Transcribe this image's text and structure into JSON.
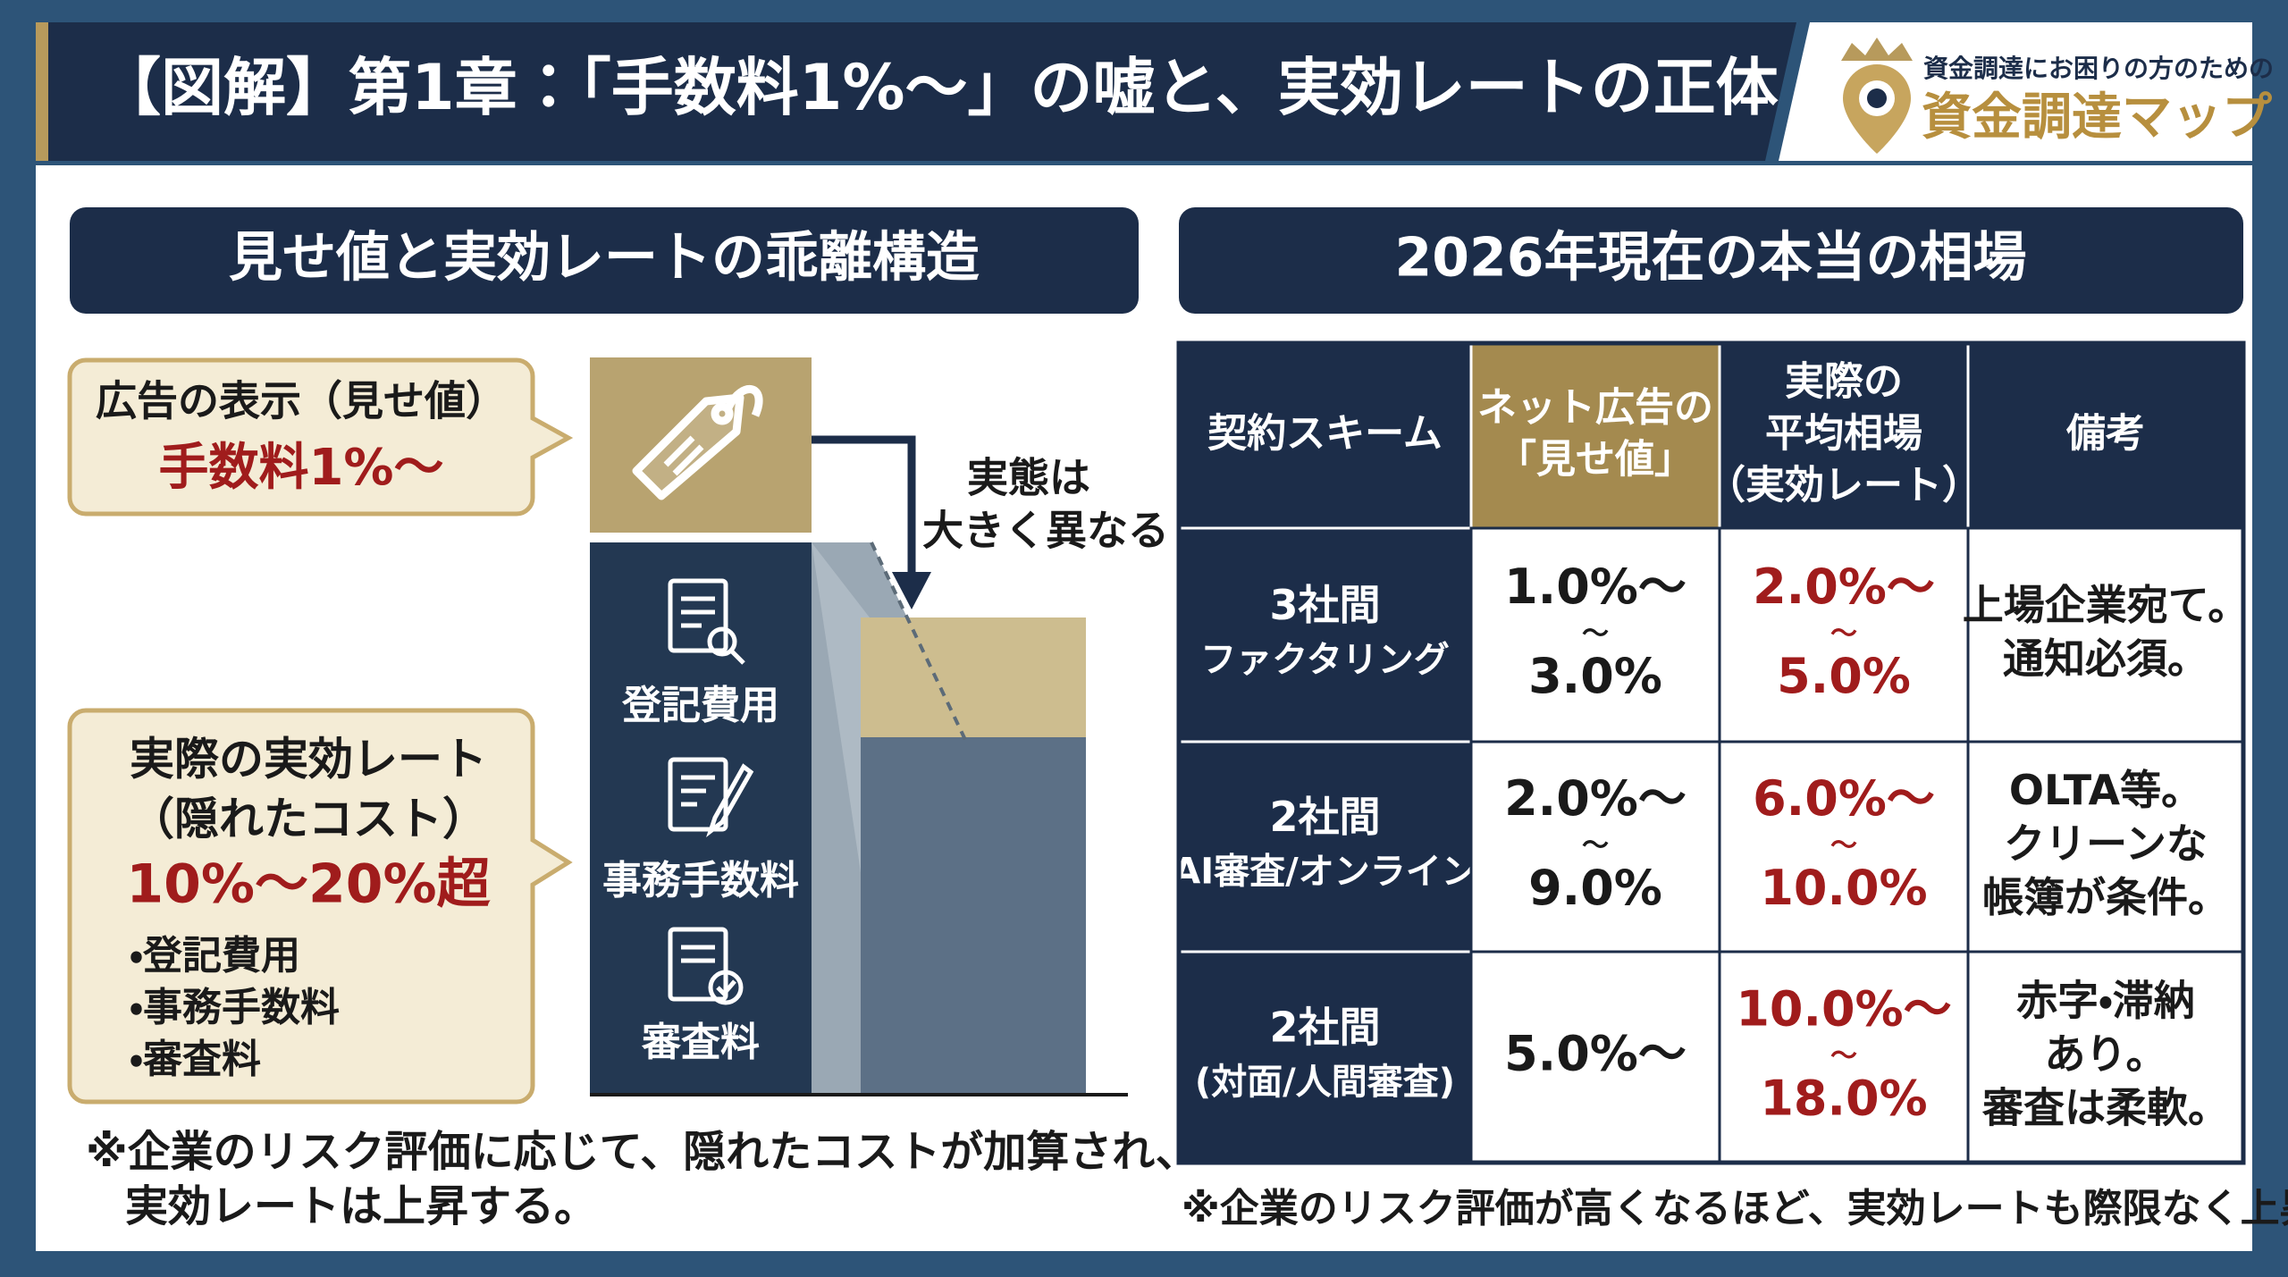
{
  "header": {
    "title": "【図解】第1章：「手数料1%〜」の嘘と、実効レートの正体"
  },
  "logo": {
    "tagline": "資金調達にお困りの方のための",
    "name": "資金調達マップ"
  },
  "left": {
    "heading": "見せ値と実効レートの乖離構造",
    "ad_callout": {
      "label": "広告の表示（見せ値）",
      "value": "手数料1%〜"
    },
    "real_callout": {
      "label": [
        "実際の実効レート",
        "（隠れたコスト）"
      ],
      "value": "10%〜20%超",
      "bullets": [
        "・登記費用",
        "・事務手数料",
        "・審査料"
      ]
    },
    "cost_items": [
      "登記費用",
      "事務手数料",
      "審査料"
    ],
    "arrow_label": [
      "実態は",
      "大きく異なる"
    ],
    "note": [
      "※企業のリスク評価に応じて、隠れたコストが加算され、",
      "実効レートは上昇する。"
    ]
  },
  "right": {
    "heading": "2026年現在の本当の相場",
    "table": {
      "headers": [
        [
          "契約スキーム"
        ],
        [
          "ネット広告の",
          "「見せ値」"
        ],
        [
          "実際の",
          "平均相場",
          "（実効レート）"
        ],
        [
          "備考"
        ]
      ],
      "rows": [
        [
          [
            "3社間",
            "ファクタリング"
          ],
          [
            "1.0%～",
            "～",
            "3.0%"
          ],
          [
            "2.0%～",
            "～",
            "5.0%"
          ],
          [
            "上場企業宛て。",
            "通知必須。"
          ]
        ],
        [
          [
            "2社間",
            "(AI審査/オンライン)"
          ],
          [
            "2.0%～",
            "～",
            "9.0%"
          ],
          [
            "6.0%～",
            "～",
            "10.0%"
          ],
          [
            "OLTA等。",
            "クリーンな",
            "帳簿が条件。"
          ]
        ],
        [
          [
            "2社間",
            "(対面/人間審査)"
          ],
          [
            "5.0%～"
          ],
          [
            "10.0%～",
            "～",
            "18.0%"
          ],
          [
            "赤字・滞納",
            "あり。",
            "審査は柔軟。"
          ]
        ]
      ]
    },
    "note": "※企業のリスク評価が高くなるほど、実効レートも際限なく上昇する。"
  }
}
